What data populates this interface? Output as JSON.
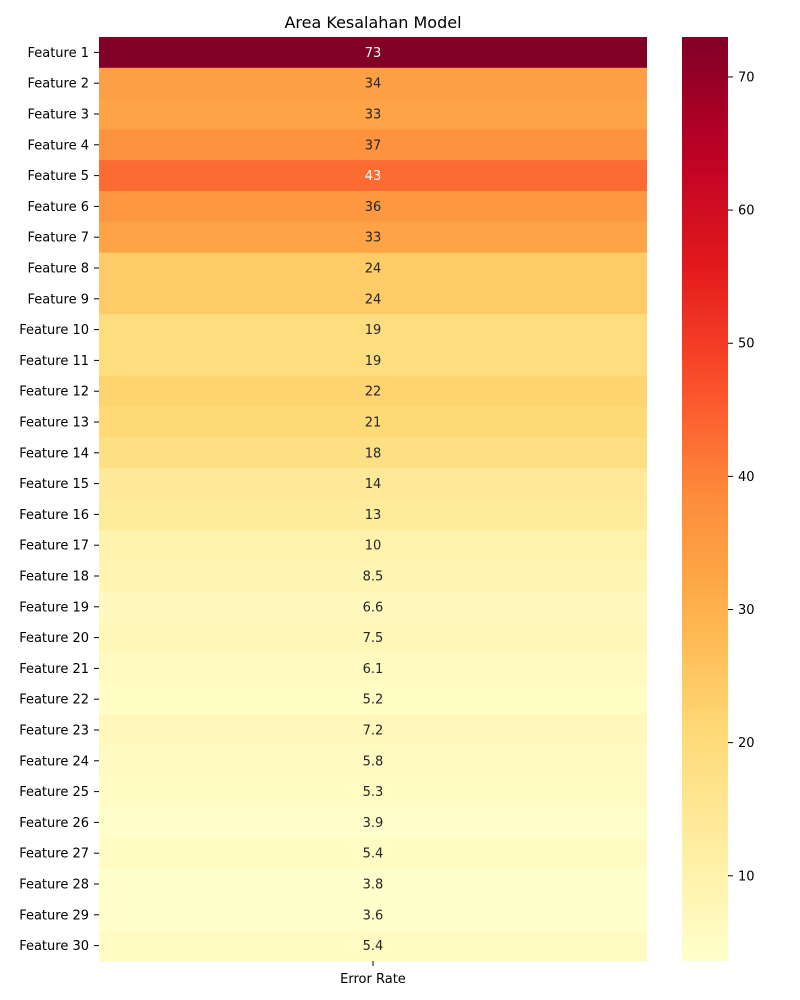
{
  "chart_data": {
    "type": "heatmap",
    "title": "Area Kesalahan Model",
    "xlabel": "",
    "ylabel": "",
    "columns": [
      "Error Rate"
    ],
    "rows": [
      "Feature 1",
      "Feature 2",
      "Feature 3",
      "Feature 4",
      "Feature 5",
      "Feature 6",
      "Feature 7",
      "Feature 8",
      "Feature 9",
      "Feature 10",
      "Feature 11",
      "Feature 12",
      "Feature 13",
      "Feature 14",
      "Feature 15",
      "Feature 16",
      "Feature 17",
      "Feature 18",
      "Feature 19",
      "Feature 20",
      "Feature 21",
      "Feature 22",
      "Feature 23",
      "Feature 24",
      "Feature 25",
      "Feature 26",
      "Feature 27",
      "Feature 28",
      "Feature 29",
      "Feature 30"
    ],
    "values": [
      73,
      34,
      33,
      37,
      43,
      36,
      33,
      24,
      24,
      19,
      19,
      22,
      21,
      18,
      14,
      13,
      10,
      8.5,
      6.6,
      7.5,
      6.1,
      5.2,
      7.2,
      5.8,
      5.3,
      3.9,
      5.4,
      3.8,
      3.6,
      5.4
    ],
    "value_labels": [
      "73",
      "34",
      "33",
      "37",
      "43",
      "36",
      "33",
      "24",
      "24",
      "19",
      "19",
      "22",
      "21",
      "18",
      "14",
      "13",
      "10",
      "8.5",
      "6.6",
      "7.5",
      "6.1",
      "5.2",
      "7.2",
      "5.8",
      "5.3",
      "3.9",
      "5.4",
      "3.8",
      "3.6",
      "5.4"
    ],
    "colormap": "YlOrRd",
    "colorbar": {
      "min": 3.6,
      "max": 73,
      "ticks": [
        10,
        20,
        30,
        40,
        50,
        60,
        70
      ]
    },
    "grid": false,
    "legend": "colorbar-right"
  }
}
